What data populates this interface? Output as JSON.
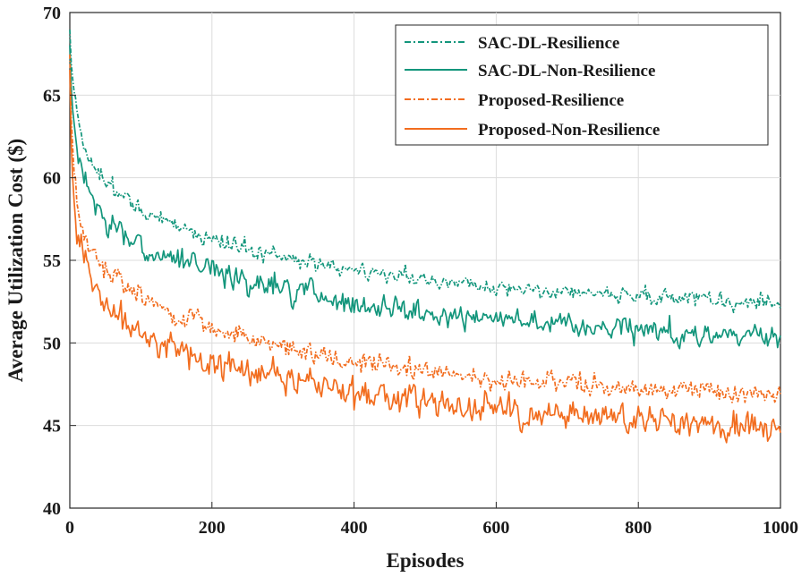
{
  "chart_data": {
    "type": "line",
    "title": "",
    "xlabel": "Episodes",
    "ylabel": "Average Utilization Cost ($)",
    "xlim": [
      0,
      1000
    ],
    "ylim": [
      40,
      70
    ],
    "xticks": [
      0,
      200,
      400,
      600,
      800,
      1000
    ],
    "yticks": [
      40,
      45,
      50,
      55,
      60,
      65,
      70
    ],
    "grid": true,
    "legend_position": "top-right",
    "x": [
      0,
      2,
      5,
      10,
      20,
      30,
      50,
      75,
      100,
      150,
      200,
      250,
      300,
      350,
      400,
      450,
      500,
      550,
      600,
      650,
      700,
      750,
      800,
      850,
      900,
      950,
      1000
    ],
    "series": [
      {
        "name": "SAC-DL-Resilience",
        "style": "dash-dot",
        "color": "#13967c",
        "noise": 0.45,
        "values": [
          69.0,
          67.0,
          65.5,
          64.0,
          62.0,
          61.0,
          59.7,
          58.8,
          58.0,
          57.0,
          56.3,
          55.7,
          55.2,
          54.8,
          54.4,
          54.1,
          53.8,
          53.6,
          53.4,
          53.3,
          53.1,
          53.0,
          52.8,
          52.7,
          52.6,
          52.5,
          52.5
        ]
      },
      {
        "name": "SAC-DL-Non-Resilience",
        "style": "solid",
        "color": "#13967c",
        "noise": 0.65,
        "values": [
          68.0,
          65.5,
          63.5,
          61.5,
          60.0,
          59.0,
          57.5,
          56.5,
          55.8,
          55.0,
          54.3,
          53.7,
          53.2,
          52.9,
          52.5,
          52.2,
          51.9,
          51.6,
          51.4,
          51.2,
          51.0,
          50.9,
          50.8,
          50.6,
          50.5,
          50.4,
          50.3
        ]
      },
      {
        "name": "Proposed-Resilience",
        "style": "dash-dot",
        "color": "#f26d1f",
        "noise": 0.55,
        "values": [
          67.5,
          63.5,
          61.0,
          58.5,
          56.5,
          55.5,
          54.3,
          53.5,
          52.8,
          51.7,
          51.0,
          50.4,
          49.8,
          49.3,
          48.9,
          48.6,
          48.3,
          48.1,
          47.9,
          47.7,
          47.5,
          47.4,
          47.3,
          47.2,
          47.1,
          47.0,
          46.9
        ]
      },
      {
        "name": "Proposed-Non-Resilience",
        "style": "solid",
        "color": "#f26d1f",
        "noise": 0.85,
        "values": [
          66.5,
          62.0,
          59.0,
          57.0,
          55.3,
          54.0,
          52.5,
          51.5,
          50.8,
          49.6,
          48.9,
          48.3,
          47.8,
          47.4,
          47.0,
          46.7,
          46.4,
          46.2,
          46.0,
          45.8,
          45.6,
          45.5,
          45.3,
          45.2,
          45.0,
          44.9,
          44.8
        ]
      }
    ]
  }
}
